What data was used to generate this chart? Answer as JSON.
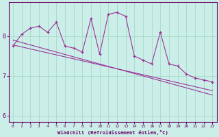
{
  "xlabel": "Windchill (Refroidissement éolien,°C)",
  "x_hours": [
    0,
    1,
    2,
    3,
    4,
    5,
    6,
    7,
    8,
    9,
    10,
    11,
    12,
    13,
    14,
    15,
    16,
    17,
    18,
    19,
    20,
    21,
    22,
    23
  ],
  "y_main": [
    7.75,
    8.05,
    8.2,
    8.25,
    8.1,
    8.35,
    7.75,
    7.7,
    7.6,
    8.45,
    7.55,
    8.55,
    8.6,
    8.5,
    7.5,
    7.4,
    7.3,
    8.1,
    7.3,
    7.25,
    7.05,
    6.95,
    6.9,
    6.85
  ],
  "y_trend1": [
    7.9,
    7.84,
    7.78,
    7.72,
    7.66,
    7.6,
    7.54,
    7.48,
    7.42,
    7.36,
    7.3,
    7.24,
    7.18,
    7.12,
    7.06,
    7.0,
    6.94,
    6.88,
    6.82,
    6.76,
    6.7,
    6.64,
    6.58,
    6.52
  ],
  "y_trend2": [
    7.78,
    7.73,
    7.68,
    7.63,
    7.58,
    7.53,
    7.48,
    7.43,
    7.38,
    7.33,
    7.28,
    7.23,
    7.18,
    7.13,
    7.08,
    7.03,
    6.98,
    6.93,
    6.88,
    6.83,
    6.78,
    6.73,
    6.68,
    6.63
  ],
  "line_color": "#993399",
  "bg_color": "#cceee8",
  "grid_color": "#aaddcc",
  "axes_color": "#660066",
  "label_color": "#660066",
  "ylim": [
    5.85,
    8.85
  ],
  "yticks": [
    6,
    7,
    8
  ],
  "xlim": [
    -0.5,
    23.5
  ],
  "figsize": [
    3.2,
    2.0
  ],
  "dpi": 100
}
